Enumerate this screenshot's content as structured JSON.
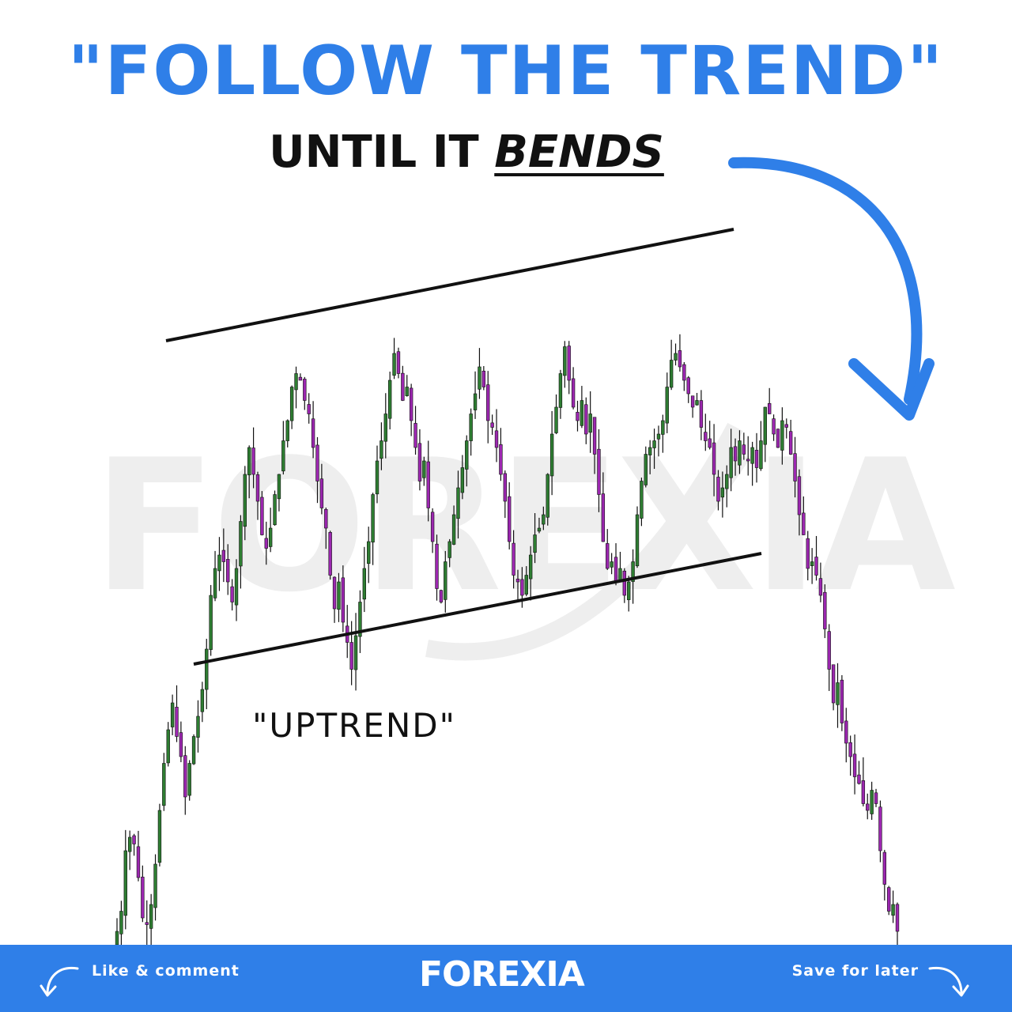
{
  "header": {
    "title": "\"FOLLOW THE TREND\"",
    "subtitle_prefix": "UNTIL IT ",
    "subtitle_emphasis": "BENDS"
  },
  "watermark": {
    "text": "FOREXIA"
  },
  "annotation": {
    "label": "\"UPTREND\""
  },
  "footer": {
    "like_label": "Like & comment",
    "brand": "FOREXIA",
    "save_label": "Save for later"
  },
  "colors": {
    "accent": "#2f7fe8",
    "bull_candle": "#2e7d32",
    "bear_candle": "#9c27b0",
    "trendline": "#111111",
    "watermark": "#eeeeee"
  },
  "icons": [
    "curved-arrow-icon",
    "like-arrow-icon",
    "save-arrow-icon"
  ],
  "chart_data": {
    "type": "candlestick",
    "title": "",
    "xlabel": "",
    "ylabel": "",
    "grid": false,
    "ylim": [
      0,
      100
    ],
    "series": [
      {
        "values": [
          2,
          5,
          14,
          16,
          15,
          10,
          4,
          3,
          6,
          12,
          20,
          27,
          32,
          36,
          31,
          28,
          22,
          27,
          31,
          34,
          38,
          44,
          52,
          56,
          58,
          57,
          54,
          51,
          56,
          63,
          70,
          74,
          70,
          66,
          61,
          59,
          62,
          67,
          70,
          75,
          78,
          83,
          85,
          84,
          81,
          79,
          74,
          69,
          65,
          62,
          55,
          50,
          54,
          48,
          45,
          41,
          46,
          51,
          56,
          60,
          67,
          72,
          75,
          79,
          84,
          88,
          85,
          81,
          83,
          78,
          74,
          69,
          72,
          65,
          60,
          53,
          51,
          57,
          60,
          64,
          68,
          71,
          75,
          79,
          82,
          86,
          83,
          78,
          77,
          74,
          70,
          66,
          60,
          55,
          54,
          52,
          55,
          58,
          61,
          62,
          64,
          70,
          76,
          80,
          85,
          89,
          84,
          80,
          78,
          81,
          76,
          79,
          73,
          67,
          60,
          56,
          57,
          54,
          56,
          52,
          54,
          57,
          64,
          69,
          73,
          74,
          75,
          76,
          78,
          83,
          87,
          88,
          86,
          84,
          82,
          80,
          81,
          77,
          75,
          74,
          70,
          66,
          68,
          70,
          74,
          72,
          75,
          73,
          72,
          74,
          71,
          75,
          80,
          79,
          76,
          74,
          78,
          77,
          73,
          69,
          64,
          61,
          56,
          57,
          55,
          52,
          47,
          41,
          36,
          39,
          33,
          30,
          28,
          25,
          24,
          21,
          20,
          23,
          21,
          14,
          9,
          5,
          6,
          2
        ]
      }
    ],
    "annotations": [
      "\"UPTREND\""
    ]
  }
}
